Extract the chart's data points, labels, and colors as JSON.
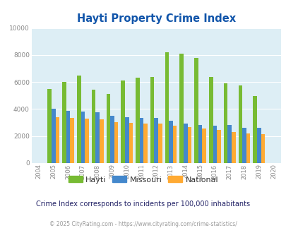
{
  "title": "Hayti Property Crime Index",
  "years": [
    2004,
    2005,
    2006,
    2007,
    2008,
    2009,
    2010,
    2011,
    2012,
    2013,
    2014,
    2015,
    2016,
    2017,
    2018,
    2019,
    2020
  ],
  "hayti": [
    null,
    5500,
    6000,
    6500,
    5450,
    5100,
    6100,
    6300,
    6350,
    8200,
    8100,
    7800,
    6350,
    5900,
    5750,
    4950,
    null
  ],
  "missouri": [
    null,
    4000,
    3850,
    3800,
    3750,
    3500,
    3400,
    3350,
    3350,
    3150,
    2950,
    2800,
    2750,
    2800,
    2600,
    2600,
    null
  ],
  "national": [
    null,
    3400,
    3350,
    3300,
    3250,
    3050,
    3000,
    2950,
    2900,
    2750,
    2650,
    2550,
    2450,
    2300,
    2200,
    2150,
    null
  ],
  "hayti_color": "#77bb33",
  "missouri_color": "#4488cc",
  "national_color": "#ffaa33",
  "bg_color": "#ddeef5",
  "title_color": "#1155aa",
  "ylim": [
    0,
    10000
  ],
  "yticks": [
    0,
    2000,
    4000,
    6000,
    8000,
    10000
  ],
  "footnote1": "Crime Index corresponds to incidents per 100,000 inhabitants",
  "footnote2": "© 2025 CityRating.com - https://www.cityrating.com/crime-statistics/",
  "footnote1_color": "#222266",
  "footnote2_color": "#999999",
  "bar_width": 0.27
}
